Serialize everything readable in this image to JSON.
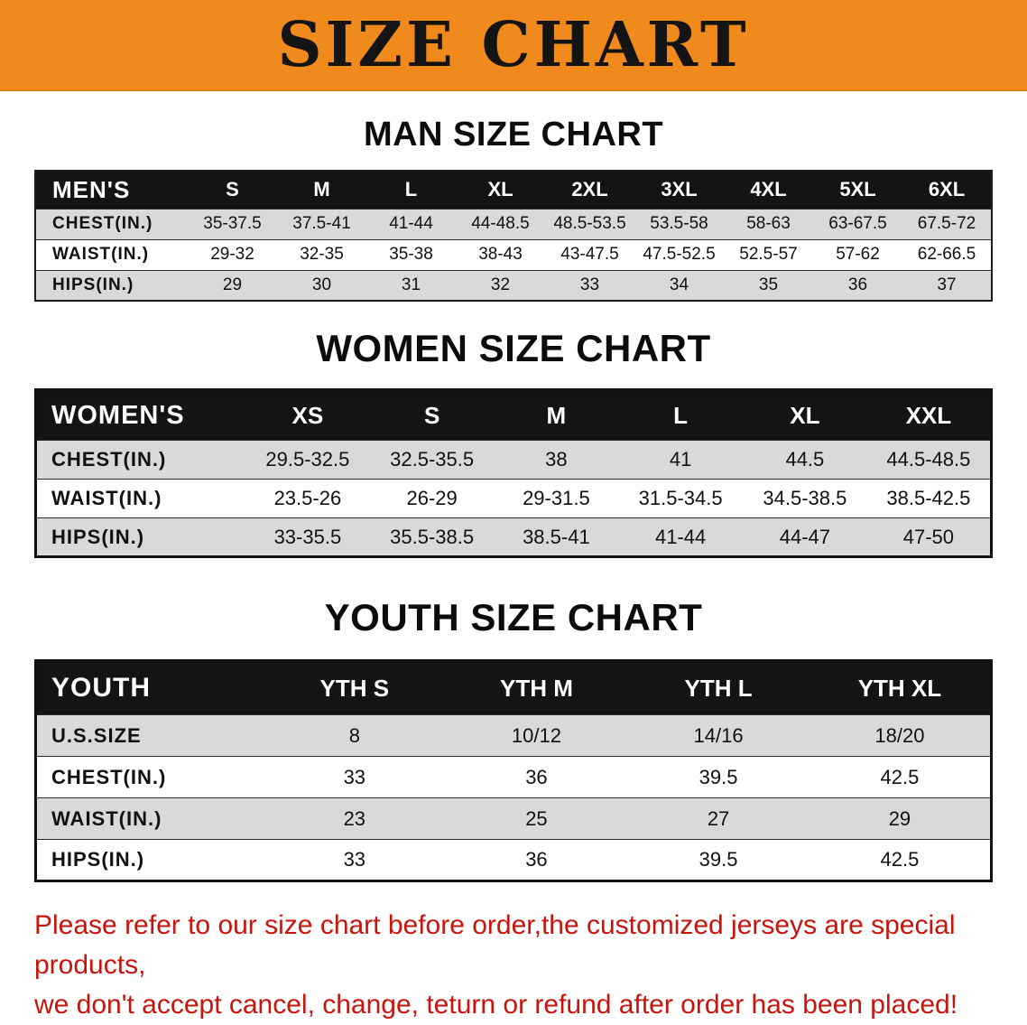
{
  "banner": {
    "title": "SIZE CHART",
    "bg_color": "#F18A1D"
  },
  "sections": [
    {
      "heading": "MAN SIZE CHART",
      "table": {
        "label_header": "MEN'S",
        "columns": [
          "S",
          "M",
          "L",
          "XL",
          "2XL",
          "3XL",
          "4XL",
          "5XL",
          "6XL"
        ],
        "rows": [
          {
            "label": "CHEST(IN.)",
            "values": [
              "35-37.5",
              "37.5-41",
              "41-44",
              "44-48.5",
              "48.5-53.5",
              "53.5-58",
              "58-63",
              "63-67.5",
              "67.5-72"
            ]
          },
          {
            "label": "WAIST(IN.)",
            "values": [
              "29-32",
              "32-35",
              "35-38",
              "38-43",
              "43-47.5",
              "47.5-52.5",
              "52.5-57",
              "57-62",
              "62-66.5"
            ]
          },
          {
            "label": "HIPS(IN.)",
            "values": [
              "29",
              "30",
              "31",
              "32",
              "33",
              "34",
              "35",
              "36",
              "37"
            ]
          }
        ]
      }
    },
    {
      "heading": "WOMEN SIZE CHART",
      "table": {
        "label_header": "WOMEN'S",
        "columns": [
          "XS",
          "S",
          "M",
          "L",
          "XL",
          "XXL"
        ],
        "rows": [
          {
            "label": "CHEST(IN.)",
            "values": [
              "29.5-32.5",
              "32.5-35.5",
              "38",
              "41",
              "44.5",
              "44.5-48.5"
            ]
          },
          {
            "label": "WAIST(IN.)",
            "values": [
              "23.5-26",
              "26-29",
              "29-31.5",
              "31.5-34.5",
              "34.5-38.5",
              "38.5-42.5"
            ]
          },
          {
            "label": "HIPS(IN.)",
            "values": [
              "33-35.5",
              "35.5-38.5",
              "38.5-41",
              "41-44",
              "44-47",
              "47-50"
            ]
          }
        ]
      }
    },
    {
      "heading": "YOUTH SIZE CHART",
      "table": {
        "label_header": "YOUTH",
        "columns": [
          "YTH S",
          "YTH M",
          "YTH L",
          "YTH XL"
        ],
        "rows": [
          {
            "label": "U.S.SIZE",
            "values": [
              "8",
              "10/12",
              "14/16",
              "18/20"
            ]
          },
          {
            "label": "CHEST(IN.)",
            "values": [
              "33",
              "36",
              "39.5",
              "42.5"
            ]
          },
          {
            "label": "WAIST(IN.)",
            "values": [
              "23",
              "25",
              "27",
              "29"
            ]
          },
          {
            "label": "HIPS(IN.)",
            "values": [
              "33",
              "36",
              "39.5",
              "42.5"
            ]
          }
        ]
      }
    }
  ],
  "footer": {
    "line1": "Please refer to our size chart before order,the customized jerseys are special products,",
    "line2": "we don't accept cancel, change, teturn or refund after order has been placed!",
    "color": "#C8150C"
  }
}
